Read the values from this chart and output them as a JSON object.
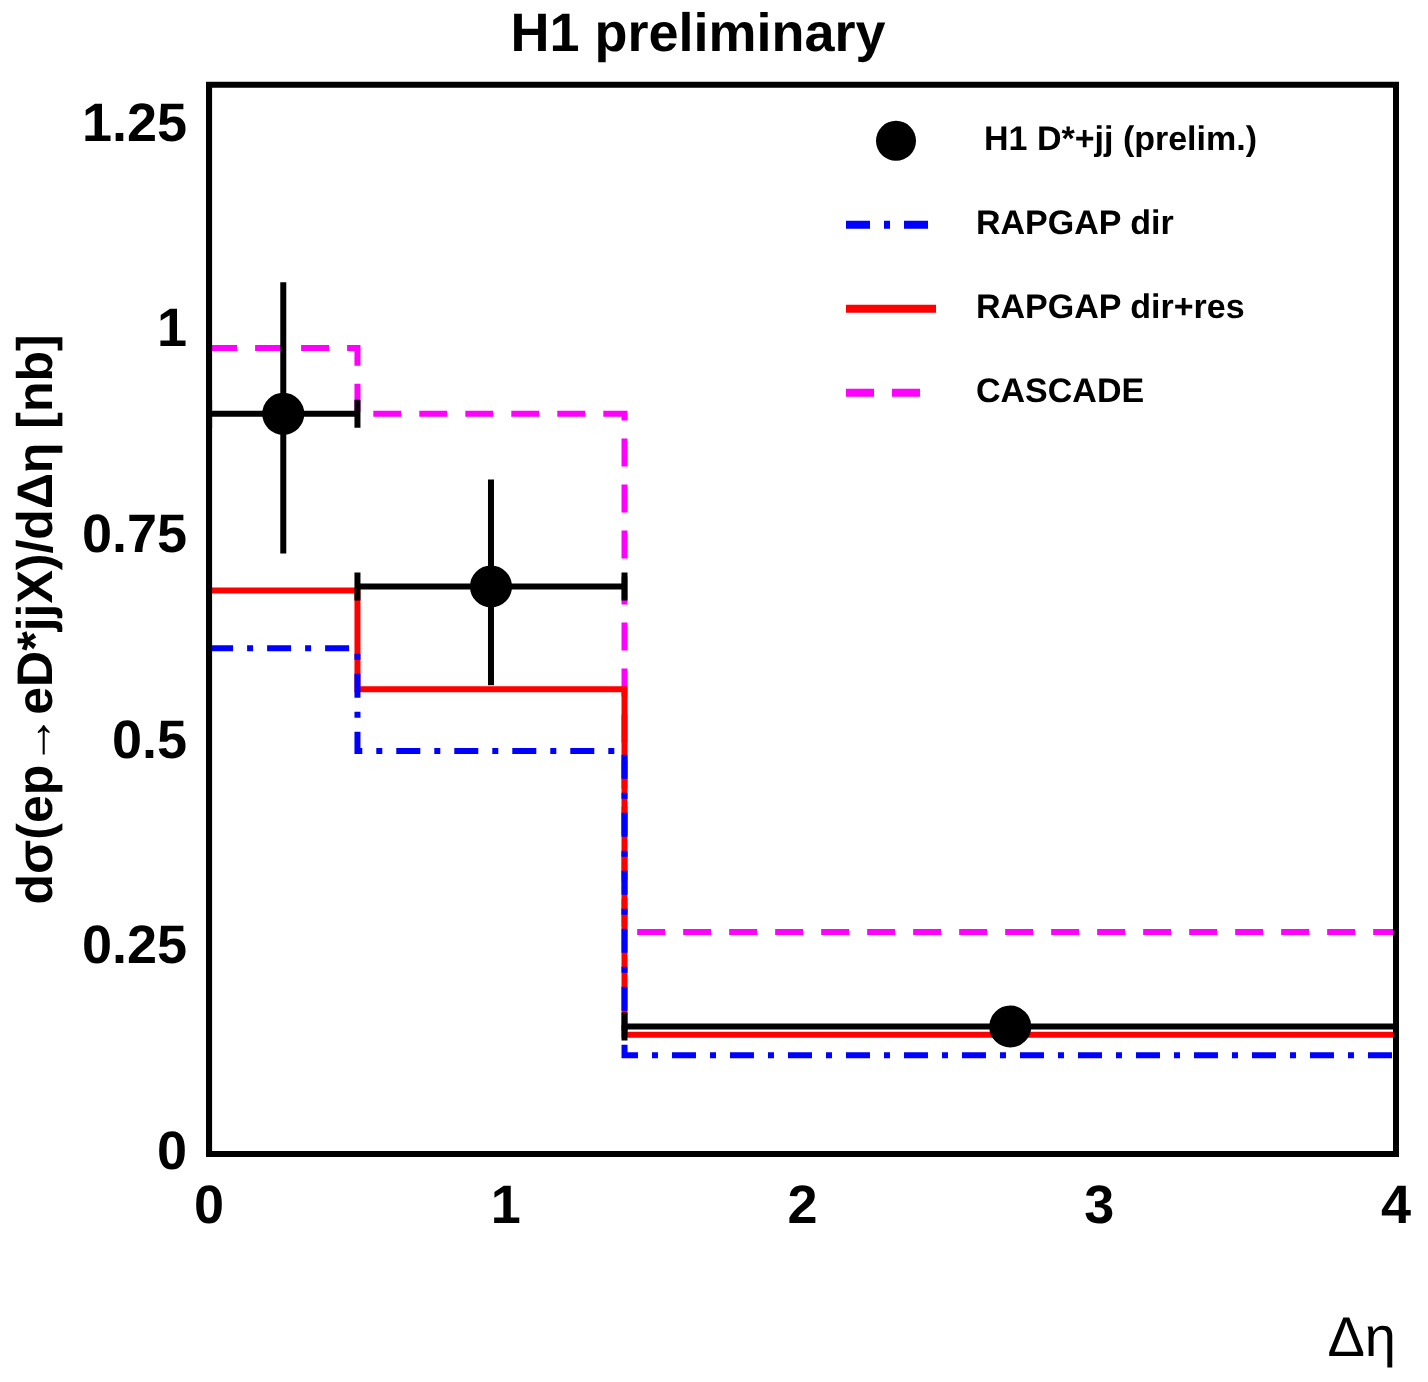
{
  "chart_data": {
    "type": "step",
    "title": "H1 preliminary",
    "xlabel": "Δη",
    "ylabel": "dσ(ep→eD*jjX)/dΔη [nb]",
    "xlim": [
      0,
      4
    ],
    "xticks": [
      0,
      1,
      2,
      3,
      4
    ],
    "ylim": [
      0,
      1.3
    ],
    "yticks": [
      0,
      0.25,
      0.5,
      0.75,
      1,
      1.25
    ],
    "grid": false,
    "legend": "top right",
    "series": [
      {
        "name": "H1 D*+jj (prelim.)",
        "type": "scatter",
        "color": "#000000",
        "marker": "circle",
        "x": [
          0.25,
          0.95,
          2.7
        ],
        "values": [
          0.9,
          0.69,
          0.155
        ],
        "errors": [
          [
            0.73,
            1.06
          ],
          [
            0.57,
            0.82
          ],
          null
        ],
        "xerrors": [
          [
            0,
            0.5
          ],
          [
            0.5,
            1.4
          ],
          [
            1.4,
            4
          ]
        ]
      },
      {
        "name": "RAPGAP dir",
        "color": "#0000ff",
        "line_style": "dashdot",
        "x": [
          0,
          0.5,
          1.4,
          4
        ],
        "values": [
          0.615,
          0.49,
          0.12,
          0.12
        ]
      },
      {
        "name": "RAPGAP dir+res",
        "color": "#ff0000",
        "line_style": "solid",
        "x": [
          0,
          0.5,
          1.4,
          4
        ],
        "values": [
          0.685,
          0.565,
          0.145,
          0.145
        ]
      },
      {
        "name": "CASCADE",
        "color": "#ff00ff",
        "line_style": "dashed",
        "x": [
          0,
          0.5,
          1.4,
          4
        ],
        "values": [
          0.98,
          0.9,
          0.27,
          0.27
        ]
      }
    ]
  }
}
